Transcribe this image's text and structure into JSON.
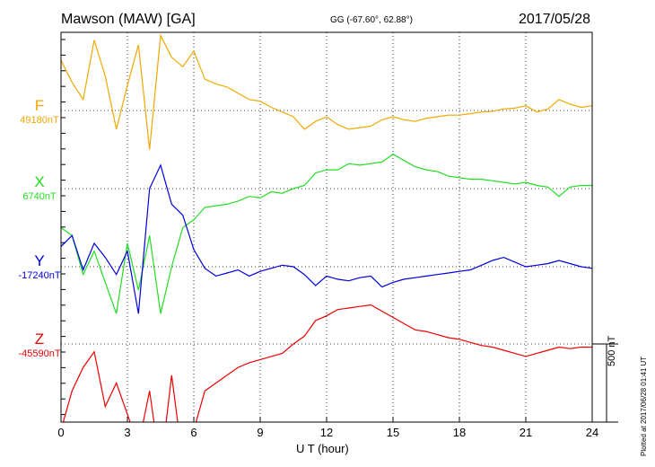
{
  "header": {
    "title": "Mawson (MAW)  [GA]",
    "coordinates": "GG (-67.60°,  62.88°)",
    "date": "2017/05/28"
  },
  "footer": {
    "plotted": "Plotted at 2017/06/28 01:41 UT"
  },
  "chart_data": {
    "type": "line",
    "title": "Mawson (MAW)  [GA]",
    "xlabel": "U T (hour)",
    "xlim": [
      0,
      24
    ],
    "xticks": [
      0,
      3,
      6,
      9,
      12,
      15,
      18,
      21,
      24
    ],
    "grid": true,
    "scale_bar": {
      "label": "500 nT",
      "value_nT": 500
    },
    "series": [
      {
        "name": "F",
        "baseline_label": "49180nT",
        "baseline_nT": 49180,
        "color": "#f0a800",
        "x": [
          0,
          0.5,
          1,
          1.5,
          2,
          2.5,
          3,
          3.5,
          4,
          4.5,
          5,
          5.5,
          6,
          6.5,
          7,
          7.5,
          8,
          8.5,
          9,
          9.5,
          10,
          10.5,
          11,
          11.5,
          12,
          12.5,
          13,
          13.5,
          14,
          14.5,
          15,
          15.5,
          16,
          16.5,
          17,
          17.5,
          18,
          18.5,
          19,
          19.5,
          20,
          20.5,
          21,
          21.5,
          22,
          22.5,
          23,
          23.5,
          24
        ],
        "values": [
          320,
          180,
          70,
          450,
          220,
          -120,
          160,
          420,
          -250,
          480,
          340,
          280,
          380,
          200,
          170,
          150,
          110,
          70,
          60,
          20,
          -10,
          -40,
          -120,
          -70,
          -40,
          -90,
          -120,
          -110,
          -100,
          -60,
          -40,
          -60,
          -70,
          -50,
          -40,
          -30,
          -30,
          -20,
          -10,
          -5,
          10,
          15,
          30,
          -10,
          10,
          70,
          40,
          20,
          30
        ]
      },
      {
        "name": "X",
        "baseline_label": "6740nT",
        "baseline_nT": 6740,
        "color": "#22dd22",
        "x": [
          0,
          0.5,
          1,
          1.5,
          2,
          2.5,
          3,
          3.5,
          4,
          4.5,
          5,
          5.5,
          6,
          6.5,
          7,
          7.5,
          8,
          8.5,
          9,
          9.5,
          10,
          10.5,
          11,
          11.5,
          12,
          12.5,
          13,
          13.5,
          14,
          14.5,
          15,
          15.5,
          16,
          16.5,
          17,
          17.5,
          18,
          18.5,
          19,
          19.5,
          20,
          20.5,
          21,
          21.5,
          22,
          22.5,
          23,
          23.5,
          24
        ],
        "values": [
          -250,
          -300,
          -550,
          -400,
          -600,
          -800,
          -350,
          -650,
          -300,
          -800,
          -500,
          -250,
          -200,
          -120,
          -110,
          -100,
          -80,
          -50,
          -60,
          -20,
          -30,
          0,
          20,
          100,
          120,
          120,
          160,
          150,
          160,
          170,
          220,
          180,
          140,
          120,
          110,
          80,
          70,
          60,
          60,
          50,
          40,
          30,
          40,
          20,
          10,
          -50,
          10,
          20,
          20
        ]
      },
      {
        "name": "Y",
        "baseline_label": "-17240nT",
        "baseline_nT": -17240,
        "color": "#0000dd",
        "x": [
          0,
          0.5,
          1,
          1.5,
          2,
          2.5,
          3,
          3.5,
          4,
          4.5,
          5,
          5.5,
          6,
          6.5,
          7,
          7.5,
          8,
          8.5,
          9,
          9.5,
          10,
          10.5,
          11,
          11.5,
          12,
          12.5,
          13,
          13.5,
          14,
          14.5,
          15,
          15.5,
          16,
          16.5,
          17,
          17.5,
          18,
          18.5,
          19,
          19.5,
          20,
          20.5,
          21,
          21.5,
          22,
          22.5,
          23,
          23.5,
          24
        ],
        "values": [
          130,
          200,
          -20,
          150,
          60,
          -50,
          100,
          -300,
          500,
          650,
          400,
          330,
          110,
          -10,
          -60,
          -40,
          -20,
          -60,
          -30,
          -10,
          10,
          0,
          -50,
          -120,
          -60,
          -80,
          -90,
          -70,
          -60,
          -130,
          -100,
          -80,
          -70,
          -60,
          -50,
          -40,
          -30,
          -20,
          10,
          40,
          60,
          30,
          0,
          10,
          20,
          40,
          20,
          0,
          -10
        ]
      },
      {
        "name": "Z",
        "baseline_label": "-45590nT",
        "baseline_nT": -45590,
        "color": "#ee0000",
        "x": [
          0,
          0.5,
          1,
          1.5,
          2,
          2.5,
          3,
          3.5,
          4,
          4.5,
          5,
          5.5,
          6,
          6.5,
          7,
          7.5,
          8,
          8.5,
          9,
          9.5,
          10,
          10.5,
          11,
          11.5,
          12,
          12.5,
          13,
          13.5,
          14,
          14.5,
          15,
          15.5,
          16,
          16.5,
          17,
          17.5,
          18,
          18.5,
          19,
          19.5,
          20,
          20.5,
          21,
          21.5,
          22,
          22.5,
          23,
          23.5,
          24
        ],
        "values": [
          -550,
          -300,
          -150,
          -50,
          -400,
          -250,
          -450,
          -650,
          -300,
          -800,
          -200,
          -750,
          -550,
          -300,
          -250,
          -200,
          -150,
          -120,
          -100,
          -80,
          -60,
          0,
          50,
          150,
          180,
          220,
          230,
          240,
          250,
          210,
          170,
          130,
          90,
          80,
          60,
          40,
          30,
          10,
          -10,
          -20,
          -40,
          -60,
          -80,
          -60,
          -40,
          -20,
          -30,
          -20,
          -20
        ]
      }
    ]
  }
}
